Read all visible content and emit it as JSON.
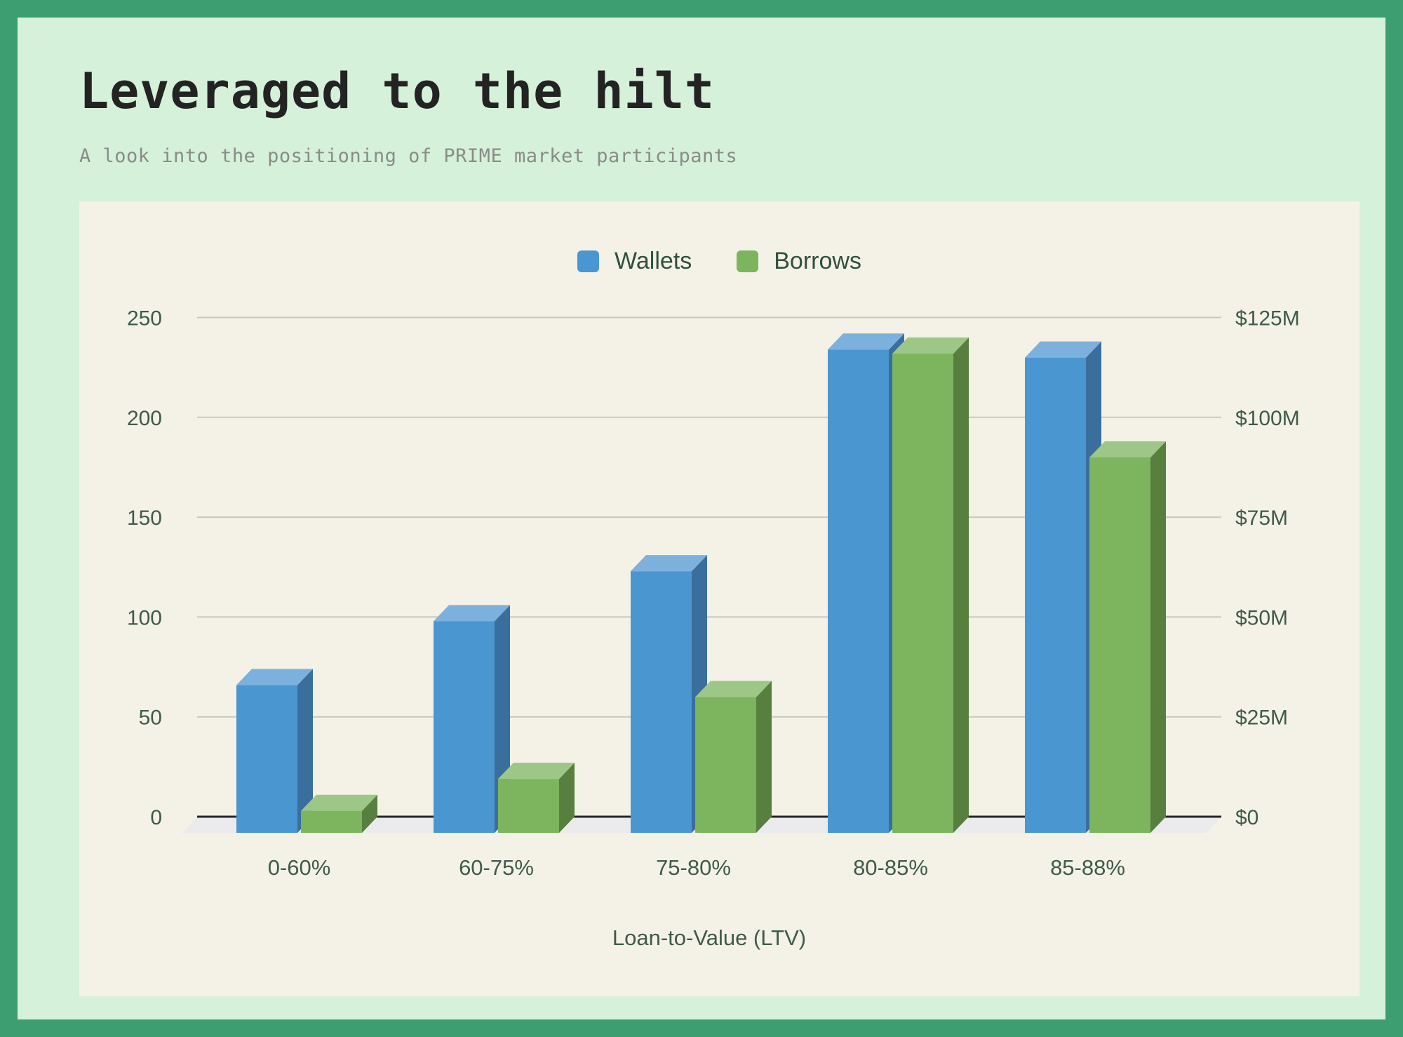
{
  "title": "Leveraged to the hilt",
  "subtitle": "A look into the positioning of PRIME market participants",
  "legend": [
    {
      "label": "Wallets",
      "color": "#4a96d1"
    },
    {
      "label": "Borrows",
      "color": "#7cb55e"
    }
  ],
  "chart_data": {
    "type": "bar",
    "style": "3d-grouped-columns",
    "categories": [
      "0-60%",
      "60-75%",
      "75-80%",
      "80-85%",
      "85-88%"
    ],
    "series": [
      {
        "name": "Wallets",
        "axis": "left",
        "unit": "wallets",
        "values": [
          74,
          106,
          131,
          242,
          238
        ]
      },
      {
        "name": "Borrows",
        "axis": "right",
        "unit": "USD millions",
        "values": [
          5.5,
          13.5,
          34,
          120,
          94
        ]
      }
    ],
    "left_axis": {
      "ticks": [
        "0",
        "50",
        "100",
        "150",
        "200",
        "250"
      ],
      "range": [
        0,
        250
      ]
    },
    "right_axis": {
      "ticks": [
        "$0",
        "$25M",
        "$50M",
        "$75M",
        "$100M",
        "$125M"
      ],
      "range": [
        0,
        125
      ]
    },
    "xlabel": "Loan-to-Value (LTV)",
    "grid": true,
    "legend_position": "top"
  },
  "colors": {
    "frame": "#3d9e71",
    "inner_bg": "#d5f1da",
    "panel_bg": "#f4f2e6",
    "wallets_front": "#4a96d1",
    "wallets_top": "#7db1dd",
    "wallets_side": "#3a6e9c",
    "borrows_front": "#7cb55e",
    "borrows_top": "#9dc787",
    "borrows_side": "#577f3e",
    "gridline": "#c8c8c2",
    "axis_line": "#262626",
    "floor": "#ebebee",
    "label_text": "#3f5a4c"
  }
}
